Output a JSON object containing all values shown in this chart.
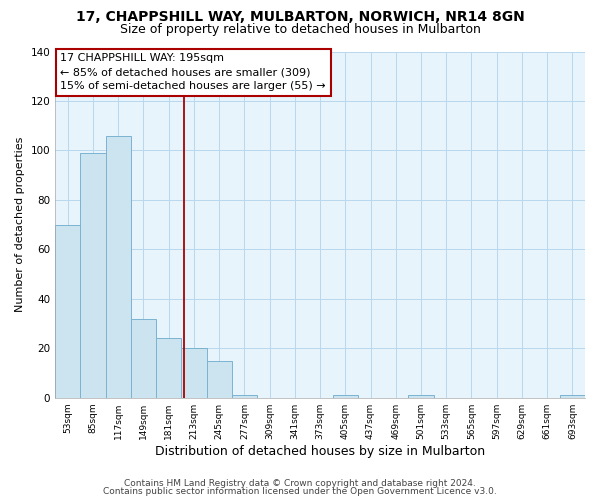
{
  "title_line1": "17, CHAPPSHILL WAY, MULBARTON, NORWICH, NR14 8GN",
  "title_line2": "Size of property relative to detached houses in Mulbarton",
  "xlabel": "Distribution of detached houses by size in Mulbarton",
  "ylabel": "Number of detached properties",
  "bin_labels": [
    "53sqm",
    "85sqm",
    "117sqm",
    "149sqm",
    "181sqm",
    "213sqm",
    "245sqm",
    "277sqm",
    "309sqm",
    "341sqm",
    "373sqm",
    "405sqm",
    "437sqm",
    "469sqm",
    "501sqm",
    "533sqm",
    "565sqm",
    "597sqm",
    "629sqm",
    "661sqm",
    "693sqm"
  ],
  "bar_heights": [
    70,
    99,
    106,
    32,
    24,
    20,
    15,
    1,
    0,
    0,
    0,
    1,
    0,
    0,
    1,
    0,
    0,
    0,
    0,
    0,
    1
  ],
  "bar_color": "#cce4f0",
  "bar_edge_color": "#7ab3d0",
  "vline_x_index": 4.62,
  "vline_color": "#aa0000",
  "annotation_line1": "17 CHAPPSHILL WAY: 195sqm",
  "annotation_line2": "← 85% of detached houses are smaller (309)",
  "annotation_line3": "15% of semi-detached houses are larger (55) →",
  "ylim": [
    0,
    140
  ],
  "yticks": [
    0,
    20,
    40,
    60,
    80,
    100,
    120,
    140
  ],
  "footer_line1": "Contains HM Land Registry data © Crown copyright and database right 2024.",
  "footer_line2": "Contains public sector information licensed under the Open Government Licence v3.0.",
  "background_color": "#ffffff",
  "plot_bg_color": "#e8f4fb",
  "grid_color": "#b8d8ee",
  "title_fontsize": 10,
  "subtitle_fontsize": 9,
  "annotation_fontsize": 8,
  "axis_label_fontsize": 8,
  "tick_fontsize": 6.5,
  "footer_fontsize": 6.5
}
